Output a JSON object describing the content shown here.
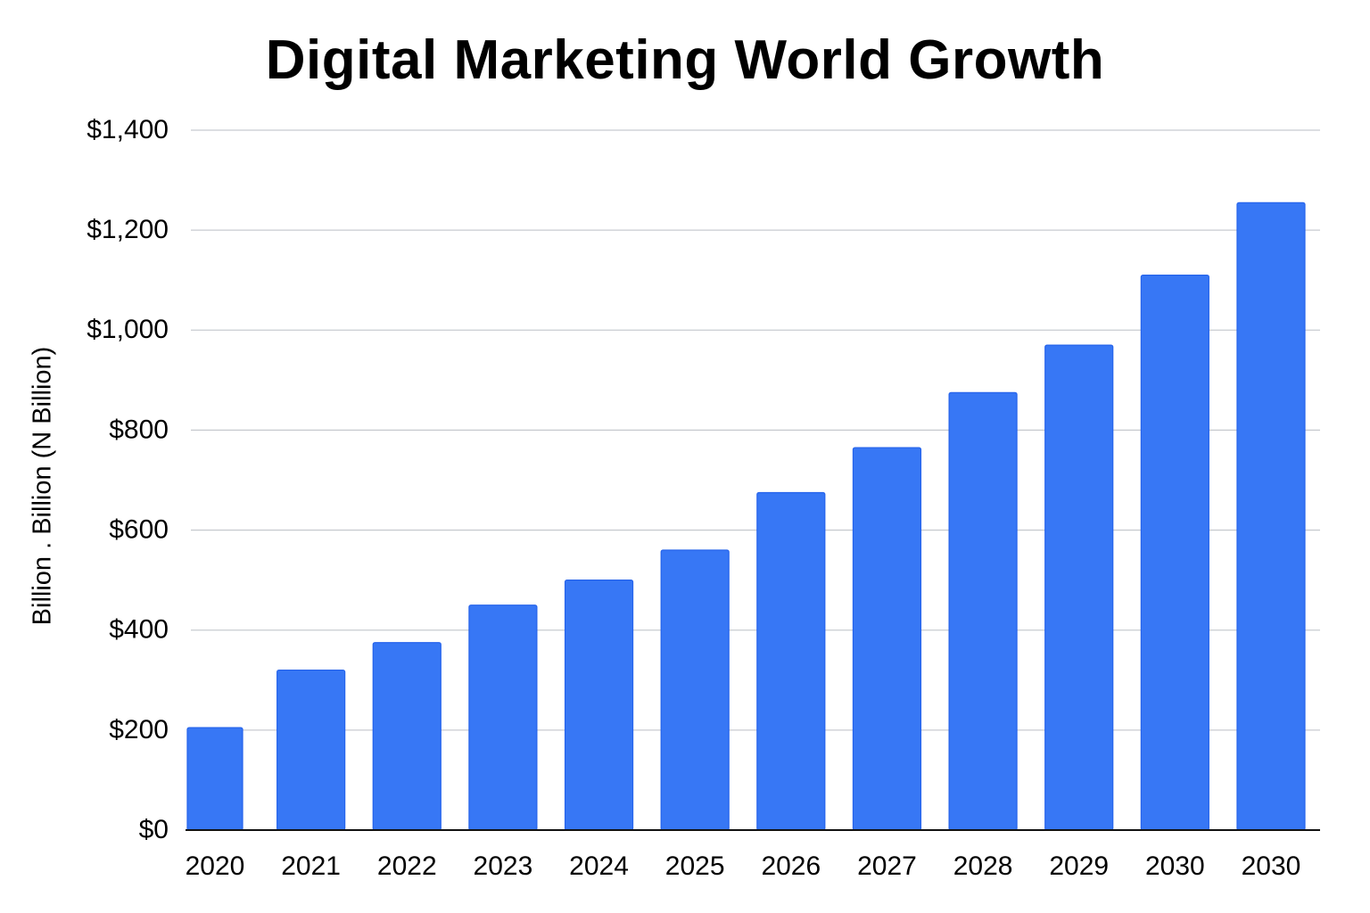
{
  "chart_data": {
    "type": "bar",
    "title": "Digital Marketing World Growth",
    "xlabel": "",
    "ylabel": "Billion . Billion (N Billion)",
    "categories": [
      "2020",
      "2021",
      "2022",
      "2023",
      "2024",
      "2025",
      "2026",
      "2027",
      "2028",
      "2029",
      "2030",
      "2030"
    ],
    "values": [
      205,
      320,
      375,
      450,
      500,
      560,
      675,
      765,
      875,
      970,
      1110,
      1255
    ],
    "ylim": [
      0,
      1400
    ],
    "yticks": [
      0,
      200,
      400,
      600,
      800,
      1000,
      1200,
      1400
    ],
    "ytick_labels": [
      "$0",
      "$200",
      "$400",
      "$600",
      "$800",
      "$1,000",
      "$1,200",
      "$1,400"
    ],
    "grid": true,
    "legend": "none",
    "bar_color": "#3777F5",
    "bar_edge_color": "#2563EB",
    "grid_color": "#C8CBD0",
    "axis_color": "#111111"
  }
}
